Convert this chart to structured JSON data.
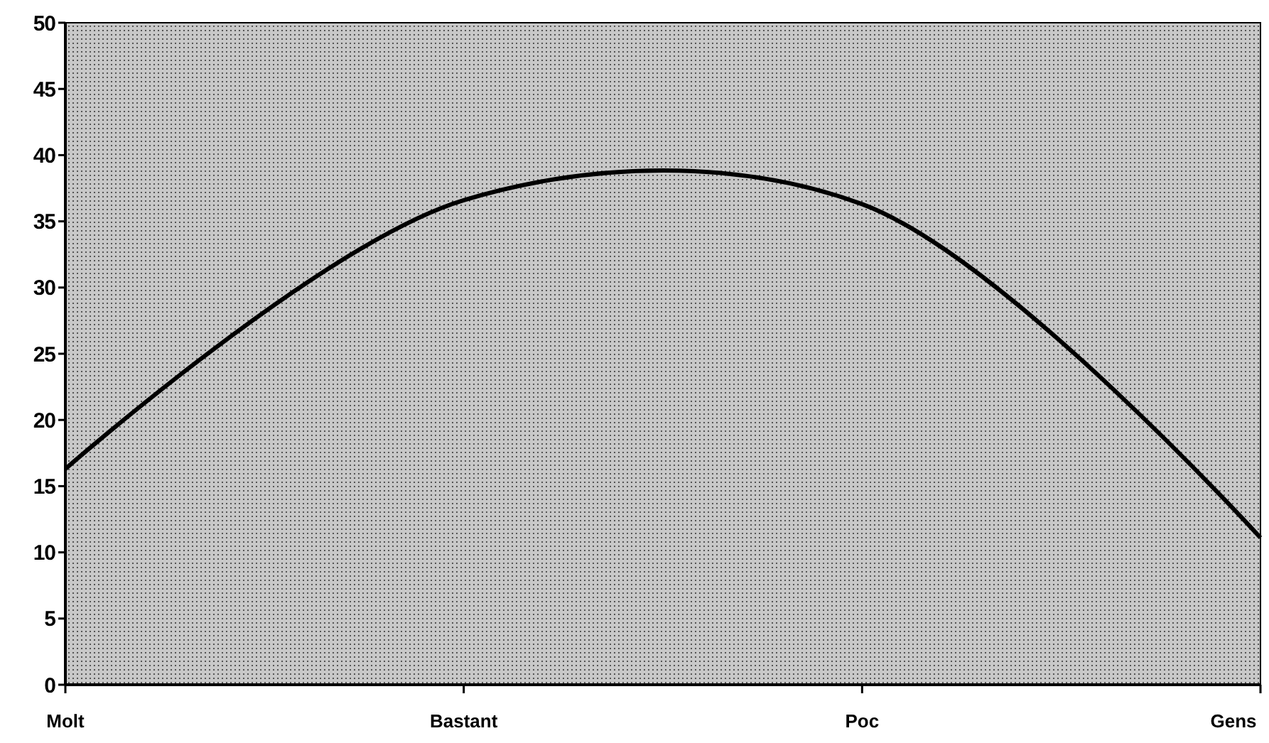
{
  "chart_data": {
    "type": "line",
    "categories": [
      "Molt",
      "Bastant",
      "Poc",
      "Gens"
    ],
    "series": [
      {
        "color": "#000000",
        "values": [
          16.3,
          36.6,
          36.3,
          11.1
        ]
      }
    ],
    "ylim": [
      0,
      50
    ],
    "yticks": [
      0,
      5,
      10,
      15,
      20,
      25,
      30,
      35,
      40,
      45,
      50
    ],
    "grid": false,
    "marker": "none",
    "line_style": "solid"
  }
}
